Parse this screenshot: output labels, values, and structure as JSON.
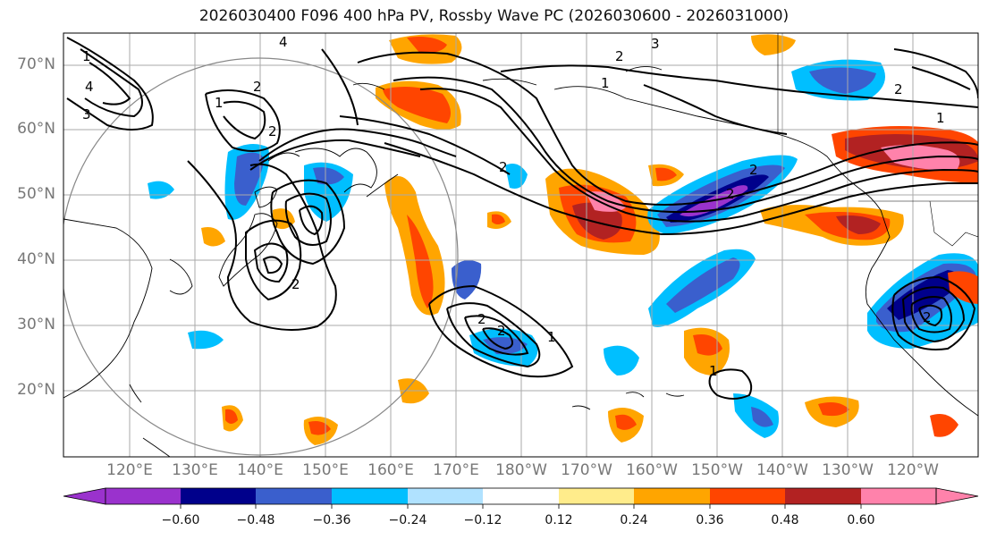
{
  "title": "2026030400 F096 400 hPa PV, Rossby Wave PC (2026030600 - 2026031000)",
  "lat_ticks": [
    "70°N",
    "60°N",
    "50°N",
    "40°N",
    "30°N",
    "20°N"
  ],
  "lon_ticks": [
    "120°E",
    "130°E",
    "140°E",
    "150°E",
    "160°E",
    "170°E",
    "180°W",
    "170°W",
    "160°W",
    "150°W",
    "140°W",
    "130°W",
    "120°W"
  ],
  "colorbar": {
    "labels": [
      "−0.60",
      "−0.48",
      "−0.36",
      "−0.24",
      "−0.12",
      "0.12",
      "0.24",
      "0.36",
      "0.48",
      "0.60"
    ],
    "colors": [
      "#9a32cd",
      "#00008b",
      "#3a5fcd",
      "#00bfff",
      "#b0e2ff",
      "#ffffff",
      "#ffec8b",
      "#ffa500",
      "#ff4500",
      "#b22222",
      "#ff82ab"
    ]
  },
  "contour_labels": [
    "1",
    "2",
    "3",
    "4"
  ],
  "colors": {
    "grid": "#aaaaaa",
    "coast": "#000000",
    "circle": "#888888"
  }
}
